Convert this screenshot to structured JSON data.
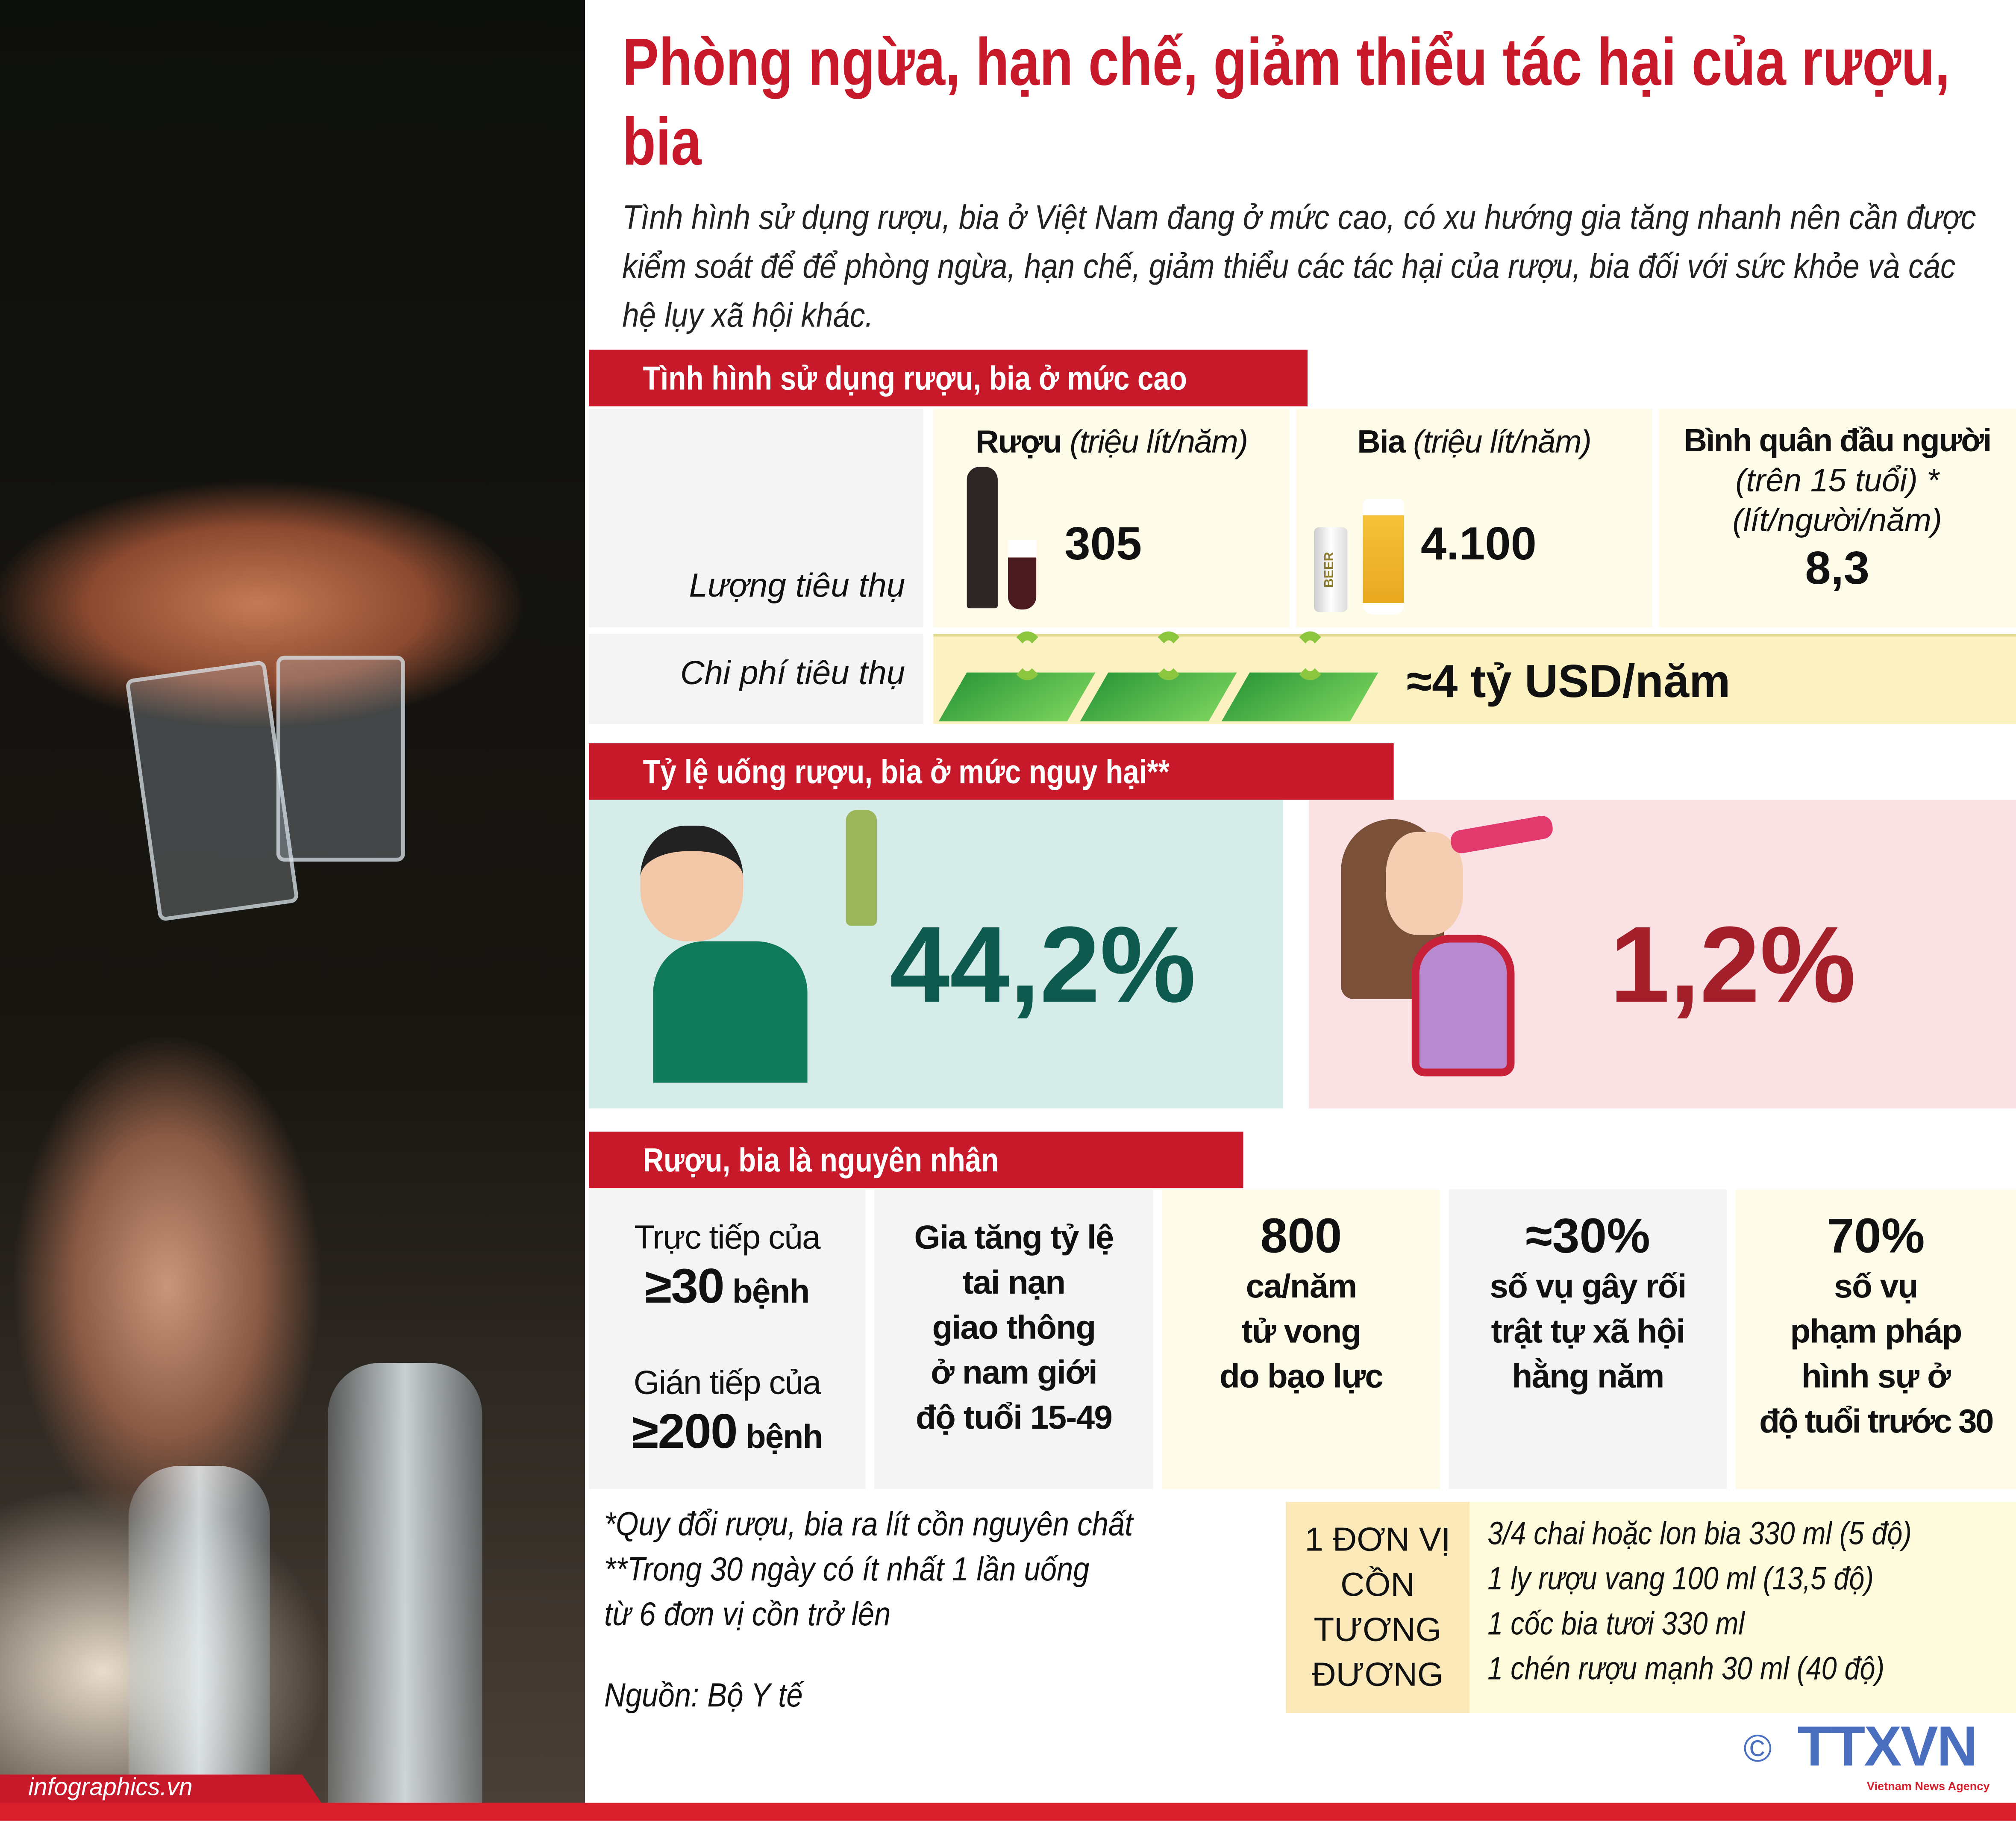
{
  "title": "Phòng ngừa, hạn chế, giảm thiểu tác hại của rượu, bia",
  "subtitle": "Tình hình sử dụng rượu, bia ở Việt Nam đang ở mức cao, có xu hướng gia tăng nhanh nên cần được kiểm soát để để phòng ngừa, hạn chế, giảm thiểu các tác hại của rượu, bia đối với sức khỏe và các hệ lụy xã hội khác.",
  "credit": "infographics.vn",
  "section1": {
    "header": "Tình hình sử dụng rượu, bia ở mức cao",
    "row_consumption_label": "Lượng tiêu thụ",
    "row_cost_label": "Chi phí tiêu thụ",
    "wine": {
      "label": "Rượu",
      "unit": "(triệu lít/năm)",
      "value": "305"
    },
    "beer": {
      "label": "Bia",
      "unit": "(triệu lít/năm)",
      "value": "4.100",
      "can_text": "BEER"
    },
    "per_capita": {
      "label": "Bình quân đầu người",
      "line2": "(trên 15 tuổi) *",
      "line3": "(lít/người/năm)",
      "value": "8,3"
    },
    "cost": "≈4 tỷ USD/năm"
  },
  "section2": {
    "header": "Tỷ lệ uống rượu, bia ở mức nguy hại**",
    "male_pct": "44,2%",
    "female_pct": "1,2%",
    "colors": {
      "male": "#0e5a4f",
      "female": "#a3202a",
      "male_bg": "#d6ece9",
      "female_bg": "#f9e1e4"
    }
  },
  "section3": {
    "header": "Rượu, bia là nguyên nhân",
    "col1": {
      "l1": "Trực tiếp của",
      "n1": "≥30",
      "u1": " bệnh",
      "l2": "Gián tiếp của",
      "n2": "≥200",
      "u2": " bệnh"
    },
    "col2": [
      "Gia tăng tỷ lệ",
      "tai nạn",
      "giao thông",
      "ở nam giới",
      "độ tuổi 15-49"
    ],
    "col3": {
      "n": "800",
      "lines": [
        "ca/năm",
        "tử vong",
        "do bạo lực"
      ]
    },
    "col4": {
      "n": "≈30%",
      "lines": [
        "số vụ gây rối",
        "trật tự xã hội",
        "hằng năm"
      ]
    },
    "col5": {
      "n": "70%",
      "lines": [
        "số vụ",
        "phạm pháp",
        "hình sự ở",
        "độ tuổi trước 30"
      ]
    }
  },
  "notes": [
    "*Quy đổi rượu, bia ra lít cồn nguyên chất",
    "**Trong 30 ngày có ít nhất 1 lần uống",
    "từ 6 đơn vị cồn trở lên"
  ],
  "source": "Nguồn: Bộ Y tế",
  "equiv": {
    "label": [
      "1 ĐƠN VỊ",
      "CỒN",
      "TƯƠNG",
      "ĐƯƠNG"
    ],
    "items": [
      "3/4 chai hoặc lon bia 330 ml (5 độ)",
      "1 ly rượu vang 100 ml (13,5 độ)",
      "1 cốc bia tươi 330 ml",
      "1 chén rượu mạnh 30 ml (40 độ)"
    ]
  },
  "logo": {
    "copyright": "©",
    "name": "TTXVN",
    "tagline": "Vietnam News Agency",
    "color": "#4a6fbf"
  }
}
